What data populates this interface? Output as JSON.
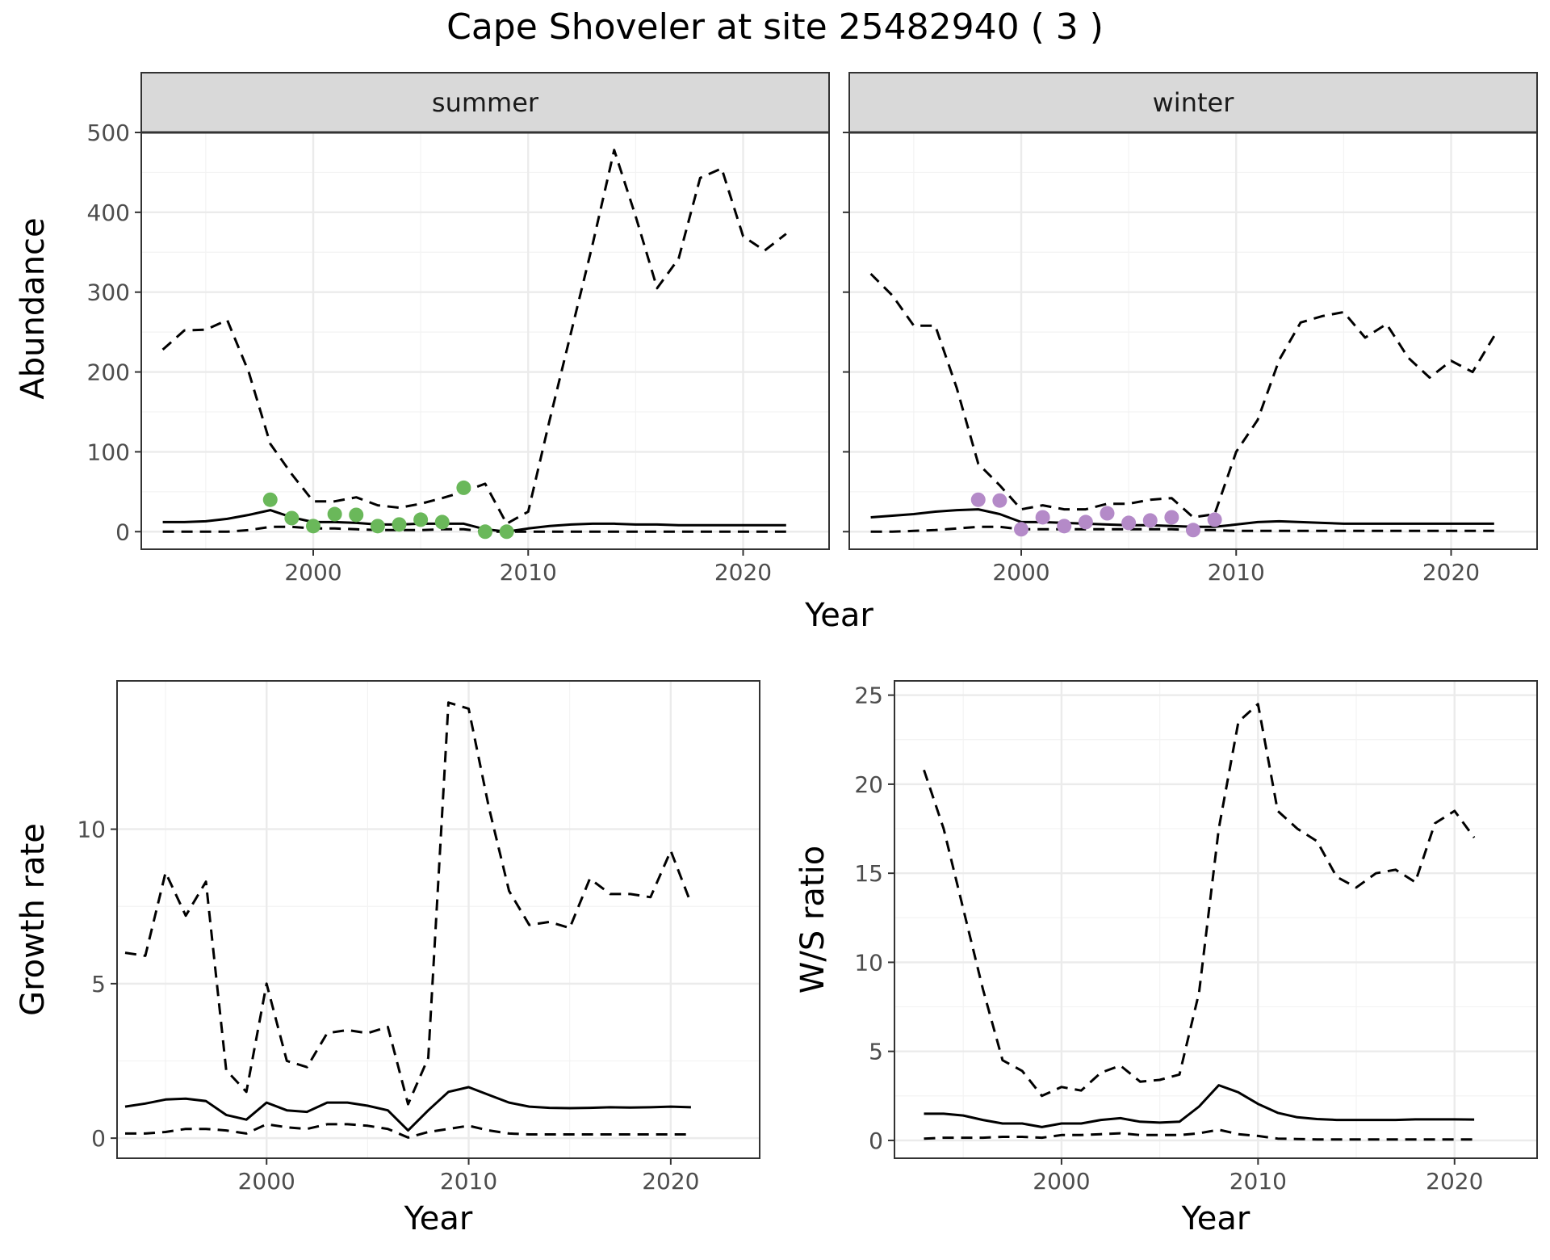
{
  "figure_title": "Cape Shoveler at site 25482940 ( 3 )",
  "colors": {
    "summer_points": "#6ab85a",
    "winter_points": "#b48ac8",
    "lines": "#000000"
  },
  "chart_data": [
    {
      "id": "abundance",
      "type": "line",
      "facets": [
        "summer",
        "winter"
      ],
      "xlabel": "Year",
      "ylabel": "Abundance",
      "xlim": [
        1992,
        2024
      ],
      "ylim": [
        -22,
        500
      ],
      "xticks": [
        2000,
        2010,
        2020
      ],
      "yticks": [
        0,
        100,
        200,
        300,
        400,
        500
      ],
      "panels": [
        {
          "facet": "summer",
          "x": [
            1993,
            1994,
            1995,
            1996,
            1997,
            1998,
            1999,
            2000,
            2001,
            2002,
            2003,
            2004,
            2005,
            2006,
            2007,
            2008,
            2009,
            2010,
            2011,
            2012,
            2013,
            2014,
            2015,
            2016,
            2017,
            2018,
            2019,
            2020,
            2021,
            2022
          ],
          "series": [
            {
              "name": "estimate",
              "style": "solid",
              "values": [
                12,
                12,
                13,
                16,
                21,
                27,
                18,
                12,
                12,
                11,
                9,
                9,
                10,
                10,
                10,
                3,
                0,
                4,
                7,
                9,
                10,
                10,
                9,
                9,
                8,
                8,
                8,
                8,
                8,
                8
              ]
            },
            {
              "name": "upper",
              "style": "dashed",
              "values": [
                228,
                252,
                253,
                265,
                200,
                110,
                72,
                38,
                38,
                43,
                33,
                30,
                35,
                42,
                50,
                60,
                10,
                25,
                140,
                250,
                360,
                478,
                395,
                305,
                342,
                443,
                455,
                370,
                352,
                373
              ]
            },
            {
              "name": "lower",
              "style": "dashed",
              "values": [
                0,
                0,
                0,
                0,
                2,
                6,
                6,
                4,
                4,
                3,
                2,
                2,
                2,
                3,
                3,
                0,
                0,
                0,
                0,
                0,
                0,
                0,
                0,
                0,
                0,
                0,
                0,
                0,
                0,
                0
              ]
            }
          ],
          "points": {
            "x": [
              1998,
              1999,
              2000,
              2001,
              2002,
              2003,
              2004,
              2005,
              2006,
              2007,
              2008,
              2009
            ],
            "y": [
              40,
              17,
              7,
              22,
              21,
              7,
              9,
              15,
              12,
              55,
              0,
              0
            ]
          }
        },
        {
          "facet": "winter",
          "x": [
            1993,
            1994,
            1995,
            1996,
            1997,
            1998,
            1999,
            2000,
            2001,
            2002,
            2003,
            2004,
            2005,
            2006,
            2007,
            2008,
            2009,
            2010,
            2011,
            2012,
            2013,
            2014,
            2015,
            2016,
            2017,
            2018,
            2019,
            2020,
            2021,
            2022
          ],
          "series": [
            {
              "name": "estimate",
              "style": "solid",
              "values": [
                18,
                20,
                22,
                25,
                27,
                28,
                22,
                12,
                12,
                11,
                10,
                9,
                8,
                8,
                7,
                6,
                6,
                9,
                12,
                13,
                12,
                11,
                10,
                10,
                10,
                10,
                10,
                10,
                10,
                10
              ]
            },
            {
              "name": "upper",
              "style": "dashed",
              "values": [
                323,
                296,
                258,
                258,
                180,
                85,
                58,
                28,
                33,
                28,
                28,
                35,
                35,
                40,
                42,
                18,
                22,
                100,
                140,
                215,
                262,
                270,
                275,
                243,
                260,
                218,
                193,
                214,
                200,
                245
              ]
            },
            {
              "name": "lower",
              "style": "dashed",
              "values": [
                0,
                0,
                1,
                2,
                4,
                6,
                6,
                3,
                3,
                3,
                3,
                3,
                3,
                3,
                3,
                2,
                2,
                1,
                1,
                1,
                1,
                1,
                1,
                1,
                1,
                1,
                1,
                1,
                1,
                1
              ]
            }
          ],
          "points": {
            "x": [
              1998,
              1999,
              2000,
              2001,
              2002,
              2003,
              2004,
              2005,
              2006,
              2007,
              2008,
              2009
            ],
            "y": [
              40,
              39,
              3,
              18,
              7,
              12,
              23,
              11,
              14,
              18,
              2,
              15
            ]
          }
        }
      ]
    },
    {
      "id": "growth",
      "type": "line",
      "xlabel": "Year",
      "ylabel": "Growth rate",
      "xlim": [
        1992.6,
        2024.4
      ],
      "ylim": [
        -0.65,
        14.8
      ],
      "xticks": [
        2000,
        2010,
        2020
      ],
      "yticks": [
        0,
        5,
        10
      ],
      "x": [
        1993,
        1994,
        1995,
        1996,
        1997,
        1998,
        1999,
        2000,
        2001,
        2002,
        2003,
        2004,
        2005,
        2006,
        2007,
        2008,
        2009,
        2010,
        2011,
        2012,
        2013,
        2014,
        2015,
        2016,
        2017,
        2018,
        2019,
        2020,
        2021
      ],
      "series": [
        {
          "name": "estimate",
          "style": "solid",
          "values": [
            1.02,
            1.12,
            1.25,
            1.28,
            1.2,
            0.75,
            0.6,
            1.15,
            0.9,
            0.85,
            1.15,
            1.15,
            1.05,
            0.9,
            0.25,
            0.9,
            1.5,
            1.65,
            1.4,
            1.15,
            1.02,
            0.98,
            0.97,
            0.98,
            1,
            0.99,
            1,
            1.02,
            1
          ]
        },
        {
          "name": "upper",
          "style": "dashed",
          "values": [
            6,
            5.9,
            8.6,
            7.2,
            8.3,
            2.2,
            1.5,
            5,
            2.5,
            2.3,
            3.4,
            3.5,
            3.4,
            3.6,
            1.1,
            2.6,
            14.1,
            13.9,
            10.7,
            8,
            6.9,
            7,
            6.8,
            8.4,
            7.9,
            7.9,
            7.8,
            9.3,
            7.6
          ]
        },
        {
          "name": "lower",
          "style": "dashed",
          "values": [
            0.15,
            0.15,
            0.2,
            0.3,
            0.3,
            0.25,
            0.15,
            0.45,
            0.35,
            0.3,
            0.45,
            0.45,
            0.4,
            0.3,
            0.02,
            0.2,
            0.3,
            0.4,
            0.25,
            0.15,
            0.12,
            0.12,
            0.12,
            0.12,
            0.12,
            0.12,
            0.12,
            0.12,
            0.12
          ]
        }
      ]
    },
    {
      "id": "ws_ratio",
      "type": "line",
      "xlabel": "Year",
      "ylabel": "W/S ratio",
      "xlim": [
        1991.5,
        2024.2
      ],
      "ylim": [
        -1.0,
        25.8
      ],
      "xticks": [
        2000,
        2010,
        2020
      ],
      "yticks": [
        0,
        5,
        10,
        15,
        20,
        25
      ],
      "x": [
        1993,
        1994,
        1995,
        1996,
        1997,
        1998,
        1999,
        2000,
        2001,
        2002,
        2003,
        2004,
        2005,
        2006,
        2007,
        2008,
        2009,
        2010,
        2011,
        2012,
        2013,
        2014,
        2015,
        2016,
        2017,
        2018,
        2019,
        2020,
        2021
      ],
      "series": [
        {
          "name": "estimate",
          "style": "solid",
          "values": [
            1.5,
            1.5,
            1.4,
            1.15,
            0.95,
            0.95,
            0.75,
            0.95,
            0.95,
            1.15,
            1.25,
            1.05,
            1.0,
            1.05,
            1.9,
            3.1,
            2.7,
            2.05,
            1.55,
            1.3,
            1.2,
            1.15,
            1.15,
            1.15,
            1.15,
            1.18,
            1.18,
            1.18,
            1.17
          ]
        },
        {
          "name": "upper",
          "style": "dashed",
          "values": [
            20.8,
            17.5,
            13,
            8.5,
            4.5,
            3.9,
            2.5,
            3,
            2.8,
            3.8,
            4.2,
            3.3,
            3.4,
            3.7,
            8.3,
            17.5,
            23.5,
            24.5,
            18.5,
            17.5,
            16.8,
            14.8,
            14.2,
            15,
            15.2,
            14.5,
            17.8,
            18.5,
            17
          ]
        },
        {
          "name": "lower",
          "style": "dashed",
          "values": [
            0.1,
            0.15,
            0.15,
            0.15,
            0.2,
            0.2,
            0.15,
            0.3,
            0.3,
            0.35,
            0.4,
            0.3,
            0.3,
            0.3,
            0.4,
            0.6,
            0.35,
            0.25,
            0.1,
            0.08,
            0.05,
            0.05,
            0.05,
            0.05,
            0.05,
            0.05,
            0.05,
            0.05,
            0.05
          ]
        }
      ]
    }
  ]
}
